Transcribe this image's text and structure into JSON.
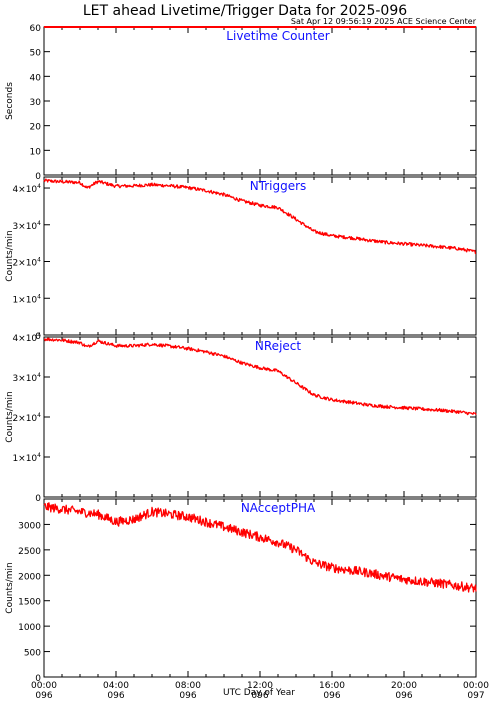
{
  "title": "LET ahead Livetime/Trigger Data for 2025-096",
  "subtitle": "Sat Apr 12 09:56:19 2025 ACE Science Center",
  "xlabel": "UTC Day of Year",
  "colors": {
    "series": "#ff0000",
    "panel_title": "#1010ff",
    "axes": "#000000"
  },
  "x_ticks": [
    {
      "time": "00:00",
      "doy": "096",
      "year": "2025"
    },
    {
      "time": "04:00",
      "doy": "096",
      "year": "2025"
    },
    {
      "time": "08:00",
      "doy": "096",
      "year": "2025"
    },
    {
      "time": "12:00",
      "doy": "096",
      "year": "2025"
    },
    {
      "time": "16:00",
      "doy": "096",
      "year": "2025"
    },
    {
      "time": "20:00",
      "doy": "096",
      "year": "2025"
    },
    {
      "time": "00:00",
      "doy": "097",
      "year": "2025"
    }
  ],
  "chart_data": [
    {
      "type": "line",
      "title": "Livetime Counter",
      "ylabel": "Seconds",
      "xlim": [
        0,
        24
      ],
      "ylim": [
        0,
        60
      ],
      "y_ticks": [
        0,
        10,
        20,
        30,
        40,
        50,
        60
      ],
      "y_tick_labels": [
        "0",
        "10",
        "20",
        "30",
        "40",
        "50",
        "60"
      ],
      "noise": 0,
      "series": [
        {
          "x": [
            0,
            24
          ],
          "values": [
            60,
            60
          ]
        }
      ]
    },
    {
      "type": "line",
      "title": "NTriggers",
      "ylabel": "Counts/min",
      "xlim": [
        0,
        24
      ],
      "ylim": [
        0,
        43000
      ],
      "y_ticks": [
        0,
        10000,
        20000,
        30000,
        40000
      ],
      "y_tick_labels": [
        {
          "base": "0",
          "exp": ""
        },
        {
          "base": "1×10",
          "exp": "4"
        },
        {
          "base": "2×10",
          "exp": "4"
        },
        {
          "base": "3×10",
          "exp": "4"
        },
        {
          "base": "4×10",
          "exp": "4"
        }
      ],
      "noise": 450,
      "series": [
        {
          "x": [
            0,
            1,
            2,
            2.4,
            3,
            4,
            5,
            6,
            7,
            8,
            9,
            10,
            11,
            12,
            13,
            14,
            15,
            16,
            17,
            18,
            19,
            20,
            21,
            22,
            23,
            24
          ],
          "values": [
            42000,
            41700,
            41500,
            40000,
            41800,
            40500,
            40600,
            40900,
            40600,
            40100,
            39300,
            38200,
            36500,
            35300,
            34700,
            31500,
            28200,
            27000,
            26500,
            25800,
            25200,
            24800,
            24400,
            24000,
            23500,
            22600
          ]
        }
      ]
    },
    {
      "type": "line",
      "title": "NReject",
      "ylabel": "Counts/min",
      "xlim": [
        0,
        24
      ],
      "ylim": [
        0,
        40000
      ],
      "y_ticks": [
        0,
        10000,
        20000,
        30000,
        40000
      ],
      "y_tick_labels": [
        {
          "base": "0",
          "exp": ""
        },
        {
          "base": "1×10",
          "exp": "4"
        },
        {
          "base": "2×10",
          "exp": "4"
        },
        {
          "base": "3×10",
          "exp": "4"
        },
        {
          "base": "4×10",
          "exp": "4"
        }
      ],
      "noise": 400,
      "series": [
        {
          "x": [
            0,
            1,
            2,
            2.4,
            3,
            4,
            5,
            6,
            7,
            8,
            9,
            10,
            11,
            12,
            13,
            14,
            15,
            16,
            17,
            18,
            19,
            20,
            21,
            22,
            23,
            24
          ],
          "values": [
            39500,
            39200,
            38600,
            37500,
            39000,
            37800,
            37800,
            38200,
            37700,
            37100,
            36300,
            35200,
            33500,
            32300,
            31500,
            28500,
            25500,
            24300,
            23700,
            23000,
            22600,
            22300,
            22000,
            21700,
            21300,
            20700
          ]
        }
      ]
    },
    {
      "type": "line",
      "title": "NAcceptPHA",
      "ylabel": "Counts/min",
      "xlim": [
        0,
        24
      ],
      "ylim": [
        0,
        3500
      ],
      "y_ticks": [
        0,
        500,
        1000,
        1500,
        2000,
        2500,
        3000
      ],
      "y_tick_labels": [
        "0",
        "500",
        "1000",
        "1500",
        "2000",
        "2500",
        "3000"
      ],
      "noise": 90,
      "series": [
        {
          "x": [
            0,
            1,
            2,
            3,
            4,
            5,
            6,
            7,
            8,
            9,
            10,
            11,
            12,
            13,
            14,
            15,
            16,
            17,
            18,
            19,
            20,
            21,
            22,
            23,
            24
          ],
          "values": [
            3350,
            3300,
            3250,
            3200,
            3050,
            3100,
            3250,
            3200,
            3150,
            3050,
            2950,
            2850,
            2750,
            2650,
            2500,
            2250,
            2150,
            2100,
            2050,
            1980,
            1920,
            1880,
            1840,
            1790,
            1740
          ]
        }
      ]
    }
  ]
}
